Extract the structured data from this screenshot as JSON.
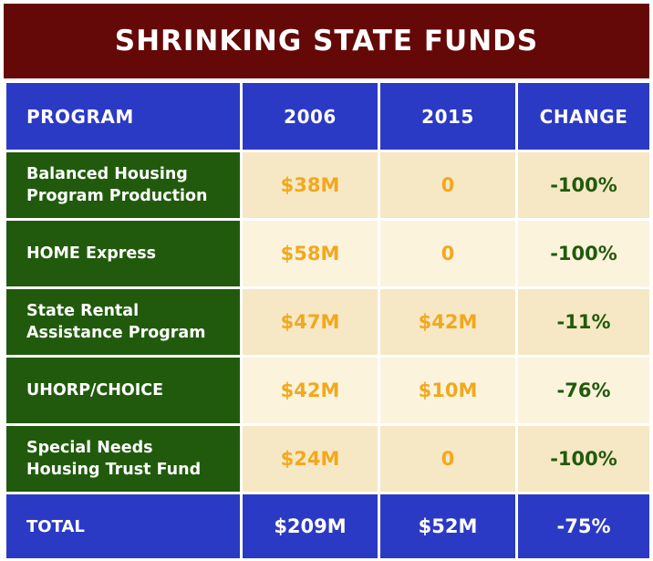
{
  "chart_data": {
    "type": "table",
    "title": "SHRINKING STATE FUNDS",
    "columns": [
      "PROGRAM",
      "2006",
      "2015",
      "CHANGE"
    ],
    "rows": [
      {
        "program": "Balanced Housing Program Production",
        "lines": [
          "Balanced Housing",
          "Program Production"
        ],
        "v2006": "$38M",
        "v2015": "0",
        "change": "-100%"
      },
      {
        "program": "HOME Express",
        "lines": [
          "HOME Express"
        ],
        "v2006": "$58M",
        "v2015": "0",
        "change": "-100%"
      },
      {
        "program": "State Rental Assistance Program",
        "lines": [
          "State Rental",
          "Assistance Program"
        ],
        "v2006": "$47M",
        "v2015": "$42M",
        "change": "-11%"
      },
      {
        "program": "UHORP/CHOICE",
        "lines": [
          "UHORP/CHOICE"
        ],
        "v2006": "$42M",
        "v2015": "$10M",
        "change": "-76%"
      },
      {
        "program": "Special Needs Housing Trust Fund",
        "lines": [
          "Special Needs",
          "Housing Trust Fund"
        ],
        "v2006": "$24M",
        "v2015": "0",
        "change": "-100%"
      }
    ],
    "total": {
      "label": "TOTAL",
      "v2006": "$209M",
      "v2015": "$52M",
      "change": "-75%"
    }
  },
  "colors": {
    "title_bg": "#650808",
    "header_bg": "#2b3ac4",
    "program_bg": "#215a0c",
    "value_text": "#f2a81d",
    "change_text": "#225a0c",
    "cell_bg_a": "#f6e8c5",
    "cell_bg_b": "#fcf3dd"
  }
}
